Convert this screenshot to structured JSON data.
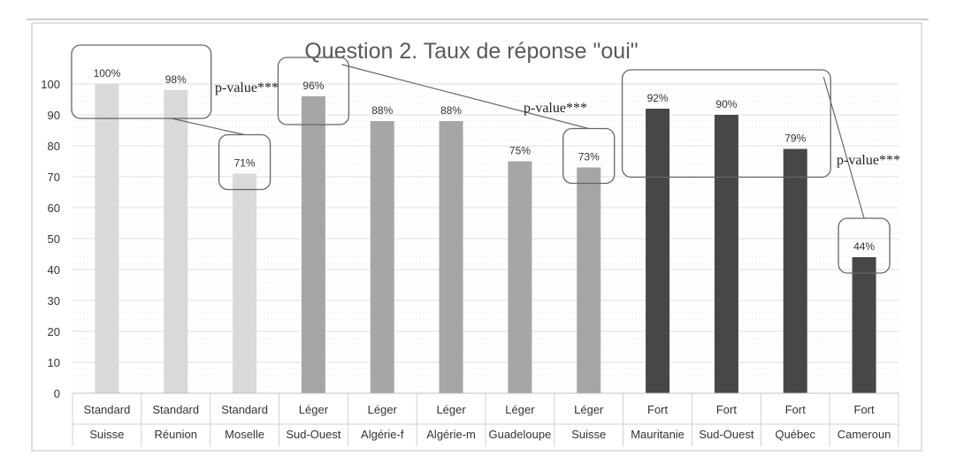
{
  "chart_data": {
    "type": "bar",
    "title": "Question 2. Taux de réponse \"oui\"",
    "xlabel": "",
    "ylabel": "",
    "ylim": [
      0,
      100
    ],
    "yticks": [
      0,
      10,
      20,
      30,
      40,
      50,
      60,
      70,
      80,
      90,
      100
    ],
    "grid": true,
    "legend": "none",
    "groups": [
      "Standard",
      "Standard",
      "Standard",
      "Léger",
      "Léger",
      "Léger",
      "Léger",
      "Léger",
      "Fort",
      "Fort",
      "Fort",
      "Fort"
    ],
    "categories": [
      "Suisse",
      "Réunion",
      "Moselle",
      "Sud-Ouest",
      "Algérie-f",
      "Algérie-m",
      "Guadeloupe",
      "Suisse",
      "Mauritanie",
      "Sud-Ouest",
      "Québec",
      "Cameroun"
    ],
    "values": [
      100,
      98,
      71,
      96,
      88,
      88,
      75,
      73,
      92,
      90,
      79,
      44
    ],
    "data_labels": [
      "100%",
      "98%",
      "71%",
      "96%",
      "88%",
      "88%",
      "75%",
      "73%",
      "92%",
      "90%",
      "79%",
      "44%"
    ],
    "colors": {
      "Standard": "#d9d9d9",
      "Léger": "#a6a6a6",
      "Fort": "#474747",
      "grid": "#e3e3e3",
      "axis_text": "#333333",
      "annotation_box": "#666666"
    },
    "annotations": [
      {
        "text": "p-value***",
        "from_bars": [
          0,
          1
        ],
        "to_bar": 2
      },
      {
        "text": "p-value***",
        "from_bars": [
          3
        ],
        "to_bar": 7
      },
      {
        "text": "p-value***",
        "from_bars": [
          8,
          9,
          10
        ],
        "to_bar": 11
      }
    ]
  }
}
